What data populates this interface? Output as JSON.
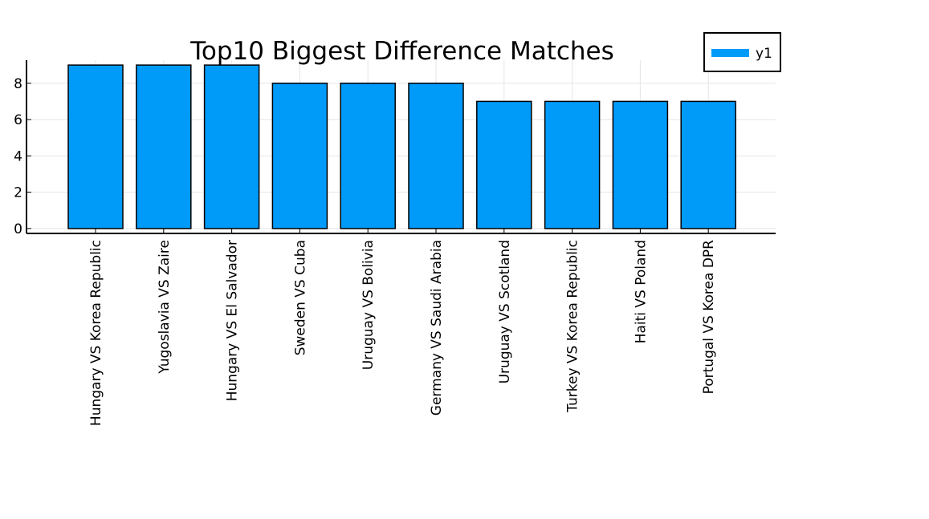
{
  "chart_data": {
    "type": "bar",
    "title": "Top10 Biggest Difference Matches",
    "categories": [
      "Hungary VS Korea Republic",
      "Yugoslavia VS Zaire",
      "Hungary VS El Salvador",
      "Sweden VS Cuba",
      "Uruguay VS Bolivia",
      "Germany VS Saudi Arabia",
      "Uruguay VS Scotland",
      "Turkey VS Korea Republic",
      "Haiti VS Poland",
      "Portugal VS Korea DPR"
    ],
    "series": [
      {
        "name": "y1",
        "values": [
          9,
          9,
          9,
          8,
          8,
          8,
          7,
          7,
          7,
          7
        ]
      }
    ],
    "xlabel": "",
    "ylabel": "",
    "ylim": [
      -0.27,
      9.27
    ],
    "yticks": [
      0,
      2,
      4,
      6,
      8
    ],
    "grid": true,
    "legend_position": "top-right",
    "colors": {
      "bar": "#009AF9",
      "edge": "#000000",
      "grid": "#E5E5E5"
    }
  }
}
